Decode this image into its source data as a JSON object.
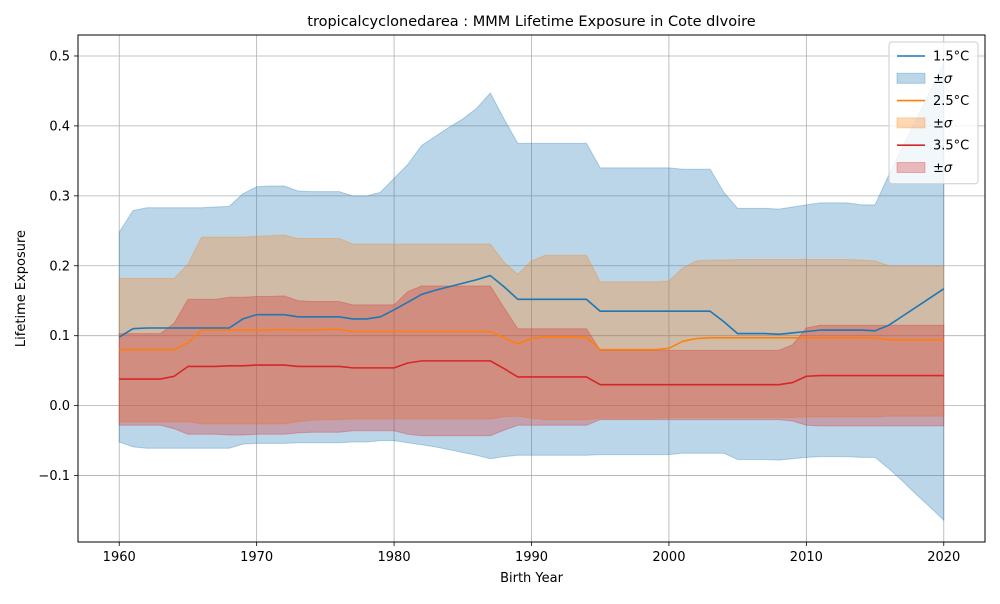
{
  "chart_data": {
    "type": "line",
    "title": "tropicalcyclonedarea : MMM Lifetime Exposure in Cote dIvoire",
    "xlabel": "Birth Year",
    "ylabel": "Lifetime Exposure",
    "xlim": [
      1957,
      2023
    ],
    "ylim": [
      -0.195,
      0.53
    ],
    "xticks": [
      1960,
      1970,
      1980,
      1990,
      2000,
      2010,
      2020
    ],
    "xtick_labels": [
      "1960",
      "1970",
      "1980",
      "1990",
      "2000",
      "2010",
      "2020"
    ],
    "yticks": [
      -0.1,
      0.0,
      0.1,
      0.2,
      0.3,
      0.4,
      0.5
    ],
    "ytick_labels": [
      "−0.1",
      "0.0",
      "0.1",
      "0.2",
      "0.3",
      "0.4",
      "0.5"
    ],
    "grid": true,
    "legend_position": "top-right",
    "x": [
      1960,
      1961,
      1962,
      1963,
      1964,
      1965,
      1966,
      1967,
      1968,
      1969,
      1970,
      1971,
      1972,
      1973,
      1974,
      1975,
      1976,
      1977,
      1978,
      1979,
      1980,
      1981,
      1982,
      1983,
      1984,
      1985,
      1986,
      1987,
      1988,
      1989,
      1990,
      1991,
      1992,
      1993,
      1994,
      1995,
      1996,
      1997,
      1998,
      1999,
      2000,
      2001,
      2002,
      2003,
      2004,
      2005,
      2006,
      2007,
      2008,
      2009,
      2010,
      2011,
      2012,
      2013,
      2014,
      2015,
      2016,
      2017,
      2018,
      2019,
      2020
    ],
    "series": [
      {
        "name": "1.5°C",
        "color": "#1f77b4",
        "band_label": "±σ",
        "mean": [
          0.098,
          0.11,
          0.111,
          0.111,
          0.111,
          0.111,
          0.111,
          0.111,
          0.111,
          0.124,
          0.13,
          0.13,
          0.13,
          0.127,
          0.127,
          0.127,
          0.127,
          0.124,
          0.124,
          0.127,
          0.137,
          0.148,
          0.159,
          0.165,
          0.17,
          0.175,
          0.18,
          0.186,
          0.17,
          0.152,
          0.152,
          0.152,
          0.152,
          0.152,
          0.152,
          0.135,
          0.135,
          0.135,
          0.135,
          0.135,
          0.135,
          0.135,
          0.135,
          0.135,
          0.12,
          0.103,
          0.103,
          0.103,
          0.102,
          0.104,
          0.106,
          0.108,
          0.108,
          0.108,
          0.108,
          0.107,
          0.115,
          0.128,
          0.141,
          0.154,
          0.167
        ],
        "upper": [
          0.248,
          0.279,
          0.283,
          0.283,
          0.283,
          0.283,
          0.283,
          0.284,
          0.285,
          0.303,
          0.313,
          0.314,
          0.314,
          0.307,
          0.306,
          0.306,
          0.306,
          0.3,
          0.3,
          0.305,
          0.325,
          0.345,
          0.372,
          0.385,
          0.398,
          0.41,
          0.425,
          0.447,
          0.41,
          0.375,
          0.375,
          0.375,
          0.375,
          0.375,
          0.375,
          0.34,
          0.34,
          0.34,
          0.34,
          0.34,
          0.34,
          0.338,
          0.338,
          0.338,
          0.305,
          0.282,
          0.282,
          0.282,
          0.281,
          0.284,
          0.287,
          0.29,
          0.29,
          0.29,
          0.287,
          0.287,
          0.33,
          0.37,
          0.41,
          0.45,
          0.49
        ],
        "lower": [
          -0.052,
          -0.059,
          -0.061,
          -0.061,
          -0.061,
          -0.061,
          -0.061,
          -0.061,
          -0.061,
          -0.055,
          -0.054,
          -0.054,
          -0.054,
          -0.053,
          -0.053,
          -0.053,
          -0.053,
          -0.052,
          -0.052,
          -0.05,
          -0.05,
          -0.053,
          -0.056,
          -0.059,
          -0.063,
          -0.067,
          -0.071,
          -0.076,
          -0.073,
          -0.071,
          -0.071,
          -0.071,
          -0.071,
          -0.071,
          -0.071,
          -0.07,
          -0.07,
          -0.07,
          -0.07,
          -0.07,
          -0.07,
          -0.068,
          -0.068,
          -0.068,
          -0.068,
          -0.077,
          -0.077,
          -0.077,
          -0.078,
          -0.076,
          -0.074,
          -0.073,
          -0.073,
          -0.073,
          -0.074,
          -0.074,
          -0.09,
          -0.108,
          -0.127,
          -0.145,
          -0.164
        ]
      },
      {
        "name": "2.5°C",
        "color": "#ff7f0e",
        "band_label": "±σ",
        "mean": [
          0.08,
          0.08,
          0.08,
          0.08,
          0.08,
          0.09,
          0.108,
          0.108,
          0.108,
          0.108,
          0.108,
          0.108,
          0.109,
          0.108,
          0.108,
          0.109,
          0.109,
          0.106,
          0.106,
          0.106,
          0.106,
          0.106,
          0.106,
          0.106,
          0.106,
          0.106,
          0.106,
          0.106,
          0.097,
          0.088,
          0.096,
          0.098,
          0.098,
          0.098,
          0.098,
          0.08,
          0.08,
          0.08,
          0.08,
          0.08,
          0.082,
          0.092,
          0.096,
          0.097,
          0.097,
          0.097,
          0.097,
          0.097,
          0.097,
          0.097,
          0.097,
          0.097,
          0.097,
          0.097,
          0.097,
          0.097,
          0.094,
          0.094,
          0.094,
          0.094,
          0.094
        ],
        "upper": [
          0.182,
          0.182,
          0.182,
          0.182,
          0.182,
          0.202,
          0.241,
          0.241,
          0.241,
          0.241,
          0.242,
          0.243,
          0.244,
          0.239,
          0.239,
          0.239,
          0.239,
          0.231,
          0.231,
          0.231,
          0.231,
          0.231,
          0.231,
          0.231,
          0.231,
          0.231,
          0.231,
          0.231,
          0.205,
          0.188,
          0.207,
          0.215,
          0.215,
          0.215,
          0.215,
          0.177,
          0.177,
          0.177,
          0.177,
          0.177,
          0.178,
          0.197,
          0.207,
          0.208,
          0.208,
          0.209,
          0.209,
          0.209,
          0.209,
          0.209,
          0.209,
          0.209,
          0.209,
          0.209,
          0.208,
          0.207,
          0.2,
          0.2,
          0.2,
          0.2,
          0.2
        ],
        "lower": [
          -0.023,
          -0.023,
          -0.023,
          -0.023,
          -0.023,
          -0.023,
          -0.026,
          -0.026,
          -0.026,
          -0.026,
          -0.026,
          -0.026,
          -0.026,
          -0.023,
          -0.021,
          -0.02,
          -0.02,
          -0.019,
          -0.019,
          -0.019,
          -0.019,
          -0.019,
          -0.019,
          -0.019,
          -0.019,
          -0.019,
          -0.019,
          -0.019,
          -0.016,
          -0.015,
          -0.018,
          -0.02,
          -0.02,
          -0.02,
          -0.02,
          -0.018,
          -0.018,
          -0.018,
          -0.018,
          -0.018,
          -0.017,
          -0.017,
          -0.017,
          -0.017,
          -0.017,
          -0.017,
          -0.017,
          -0.017,
          -0.017,
          -0.017,
          -0.016,
          -0.016,
          -0.016,
          -0.016,
          -0.016,
          -0.016,
          -0.015,
          -0.015,
          -0.015,
          -0.015,
          -0.015
        ]
      },
      {
        "name": "3.5°C",
        "color": "#d62728",
        "band_label": "±σ",
        "mean": [
          0.038,
          0.038,
          0.038,
          0.038,
          0.042,
          0.056,
          0.056,
          0.056,
          0.057,
          0.057,
          0.058,
          0.058,
          0.058,
          0.056,
          0.056,
          0.056,
          0.056,
          0.054,
          0.054,
          0.054,
          0.054,
          0.061,
          0.064,
          0.064,
          0.064,
          0.064,
          0.064,
          0.064,
          0.053,
          0.041,
          0.041,
          0.041,
          0.041,
          0.041,
          0.041,
          0.03,
          0.03,
          0.03,
          0.03,
          0.03,
          0.03,
          0.03,
          0.03,
          0.03,
          0.03,
          0.03,
          0.03,
          0.03,
          0.03,
          0.033,
          0.042,
          0.043,
          0.043,
          0.043,
          0.043,
          0.043,
          0.043,
          0.043,
          0.043,
          0.043,
          0.043
        ],
        "upper": [
          0.103,
          0.103,
          0.103,
          0.103,
          0.118,
          0.152,
          0.152,
          0.152,
          0.155,
          0.155,
          0.156,
          0.156,
          0.157,
          0.15,
          0.149,
          0.149,
          0.149,
          0.144,
          0.144,
          0.144,
          0.144,
          0.163,
          0.171,
          0.171,
          0.171,
          0.171,
          0.171,
          0.171,
          0.14,
          0.11,
          0.11,
          0.11,
          0.11,
          0.11,
          0.11,
          0.079,
          0.079,
          0.079,
          0.079,
          0.079,
          0.079,
          0.079,
          0.079,
          0.079,
          0.079,
          0.079,
          0.079,
          0.079,
          0.079,
          0.087,
          0.111,
          0.115,
          0.115,
          0.115,
          0.115,
          0.115,
          0.115,
          0.115,
          0.115,
          0.115,
          0.115
        ],
        "lower": [
          -0.028,
          -0.028,
          -0.028,
          -0.028,
          -0.033,
          -0.041,
          -0.041,
          -0.041,
          -0.042,
          -0.042,
          -0.041,
          -0.041,
          -0.041,
          -0.039,
          -0.038,
          -0.038,
          -0.038,
          -0.036,
          -0.036,
          -0.036,
          -0.036,
          -0.041,
          -0.043,
          -0.043,
          -0.043,
          -0.043,
          -0.043,
          -0.043,
          -0.035,
          -0.028,
          -0.028,
          -0.028,
          -0.028,
          -0.028,
          -0.028,
          -0.02,
          -0.02,
          -0.02,
          -0.02,
          -0.02,
          -0.02,
          -0.02,
          -0.02,
          -0.02,
          -0.02,
          -0.02,
          -0.02,
          -0.02,
          -0.02,
          -0.022,
          -0.028,
          -0.029,
          -0.029,
          -0.029,
          -0.029,
          -0.029,
          -0.029,
          -0.029,
          -0.029,
          -0.029,
          -0.029
        ]
      }
    ]
  }
}
